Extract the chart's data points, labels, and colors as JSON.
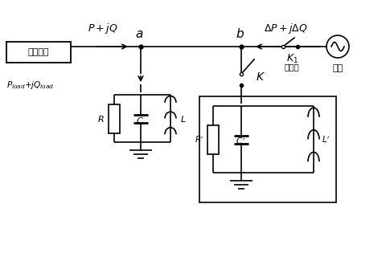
{
  "bg_color": "#ffffff",
  "line_color": "#000000",
  "box_pv_label": "光伏系统",
  "label_pq": "$P+jQ$",
  "label_delta_pq": "$\\Delta P+j\\Delta Q$",
  "label_a": "a",
  "label_b": "b",
  "label_K": "$K$",
  "label_K1": "$K_1$",
  "label_duanluqi": "断路器",
  "label_diangwang": "电网",
  "label_R": "$R$",
  "label_C": "$C$",
  "label_L": "$L$",
  "label_Rp": "$R'$",
  "label_Cp": "$C'$",
  "label_Lp": "$L'$",
  "label_pload": "$P_{load}$+j$Q_{load}$"
}
